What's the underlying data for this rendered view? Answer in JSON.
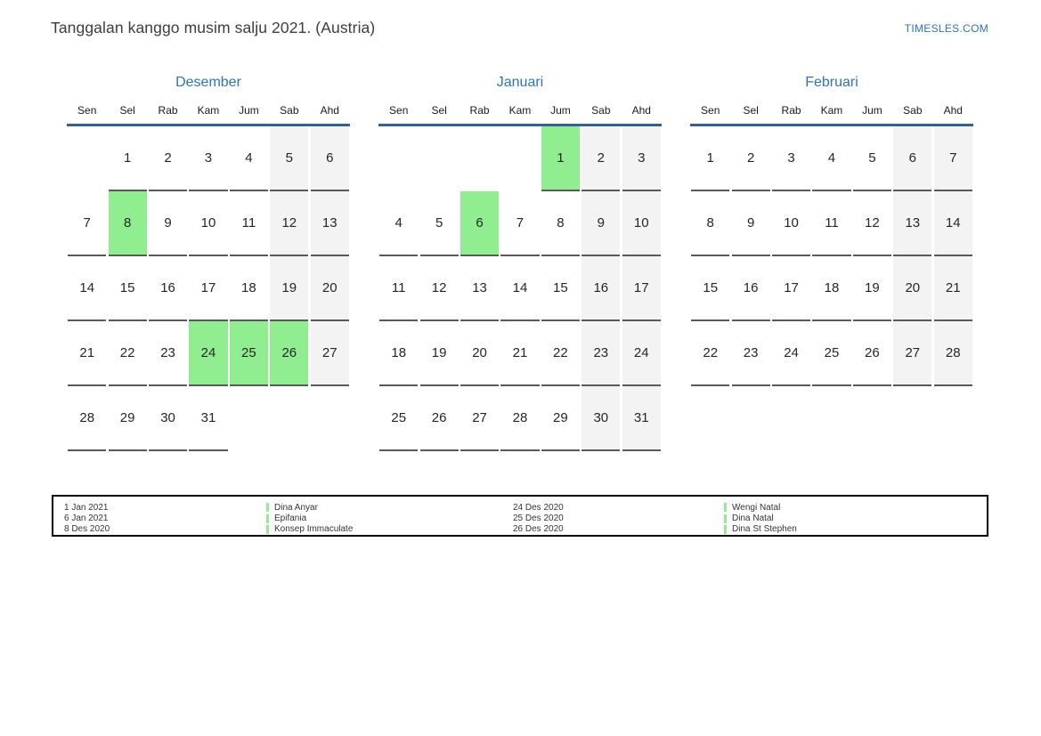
{
  "header": {
    "title": "Tanggalan kanggo musim salju 2021. (Austria)",
    "site_link": "TIMESLES.COM"
  },
  "colors": {
    "accent_blue": "#2e75b6",
    "header_line_blue": "#36618e",
    "holiday_green": "#90ee90",
    "weekend_gray": "#f3f3f3",
    "cell_underline": "#595959",
    "legend_border": "#000000"
  },
  "calendar": {
    "weekday_labels": [
      "Sen",
      "Sel",
      "Rab",
      "Kam",
      "Jum",
      "Sab",
      "Ahd"
    ],
    "months": [
      {
        "name": "Desember",
        "weeks": [
          [
            null,
            {
              "day": 1,
              "type": "normal"
            },
            {
              "day": 2,
              "type": "normal"
            },
            {
              "day": 3,
              "type": "normal"
            },
            {
              "day": 4,
              "type": "normal"
            },
            {
              "day": 5,
              "type": "weekend"
            },
            {
              "day": 6,
              "type": "weekend"
            }
          ],
          [
            {
              "day": 7,
              "type": "normal"
            },
            {
              "day": 8,
              "type": "holiday"
            },
            {
              "day": 9,
              "type": "normal"
            },
            {
              "day": 10,
              "type": "normal"
            },
            {
              "day": 11,
              "type": "normal"
            },
            {
              "day": 12,
              "type": "weekend"
            },
            {
              "day": 13,
              "type": "weekend"
            }
          ],
          [
            {
              "day": 14,
              "type": "normal"
            },
            {
              "day": 15,
              "type": "normal"
            },
            {
              "day": 16,
              "type": "normal"
            },
            {
              "day": 17,
              "type": "normal"
            },
            {
              "day": 18,
              "type": "normal"
            },
            {
              "day": 19,
              "type": "weekend"
            },
            {
              "day": 20,
              "type": "weekend"
            }
          ],
          [
            {
              "day": 21,
              "type": "normal"
            },
            {
              "day": 22,
              "type": "normal"
            },
            {
              "day": 23,
              "type": "normal"
            },
            {
              "day": 24,
              "type": "holiday"
            },
            {
              "day": 25,
              "type": "holiday"
            },
            {
              "day": 26,
              "type": "holiday"
            },
            {
              "day": 27,
              "type": "weekend"
            }
          ],
          [
            {
              "day": 28,
              "type": "normal"
            },
            {
              "day": 29,
              "type": "normal"
            },
            {
              "day": 30,
              "type": "normal"
            },
            {
              "day": 31,
              "type": "normal"
            },
            null,
            null,
            null
          ]
        ]
      },
      {
        "name": "Januari",
        "weeks": [
          [
            null,
            null,
            null,
            null,
            {
              "day": 1,
              "type": "holiday"
            },
            {
              "day": 2,
              "type": "weekend"
            },
            {
              "day": 3,
              "type": "weekend"
            }
          ],
          [
            {
              "day": 4,
              "type": "normal"
            },
            {
              "day": 5,
              "type": "normal"
            },
            {
              "day": 6,
              "type": "holiday"
            },
            {
              "day": 7,
              "type": "normal"
            },
            {
              "day": 8,
              "type": "normal"
            },
            {
              "day": 9,
              "type": "weekend"
            },
            {
              "day": 10,
              "type": "weekend"
            }
          ],
          [
            {
              "day": 11,
              "type": "normal"
            },
            {
              "day": 12,
              "type": "normal"
            },
            {
              "day": 13,
              "type": "normal"
            },
            {
              "day": 14,
              "type": "normal"
            },
            {
              "day": 15,
              "type": "normal"
            },
            {
              "day": 16,
              "type": "weekend"
            },
            {
              "day": 17,
              "type": "weekend"
            }
          ],
          [
            {
              "day": 18,
              "type": "normal"
            },
            {
              "day": 19,
              "type": "normal"
            },
            {
              "day": 20,
              "type": "normal"
            },
            {
              "day": 21,
              "type": "normal"
            },
            {
              "day": 22,
              "type": "normal"
            },
            {
              "day": 23,
              "type": "weekend"
            },
            {
              "day": 24,
              "type": "weekend"
            }
          ],
          [
            {
              "day": 25,
              "type": "normal"
            },
            {
              "day": 26,
              "type": "normal"
            },
            {
              "day": 27,
              "type": "normal"
            },
            {
              "day": 28,
              "type": "normal"
            },
            {
              "day": 29,
              "type": "normal"
            },
            {
              "day": 30,
              "type": "weekend"
            },
            {
              "day": 31,
              "type": "weekend"
            }
          ]
        ]
      },
      {
        "name": "Februari",
        "weeks": [
          [
            {
              "day": 1,
              "type": "normal"
            },
            {
              "day": 2,
              "type": "normal"
            },
            {
              "day": 3,
              "type": "normal"
            },
            {
              "day": 4,
              "type": "normal"
            },
            {
              "day": 5,
              "type": "normal"
            },
            {
              "day": 6,
              "type": "weekend"
            },
            {
              "day": 7,
              "type": "weekend"
            }
          ],
          [
            {
              "day": 8,
              "type": "normal"
            },
            {
              "day": 9,
              "type": "normal"
            },
            {
              "day": 10,
              "type": "normal"
            },
            {
              "day": 11,
              "type": "normal"
            },
            {
              "day": 12,
              "type": "normal"
            },
            {
              "day": 13,
              "type": "weekend"
            },
            {
              "day": 14,
              "type": "weekend"
            }
          ],
          [
            {
              "day": 15,
              "type": "normal"
            },
            {
              "day": 16,
              "type": "normal"
            },
            {
              "day": 17,
              "type": "normal"
            },
            {
              "day": 18,
              "type": "normal"
            },
            {
              "day": 19,
              "type": "normal"
            },
            {
              "day": 20,
              "type": "weekend"
            },
            {
              "day": 21,
              "type": "weekend"
            }
          ],
          [
            {
              "day": 22,
              "type": "normal"
            },
            {
              "day": 23,
              "type": "normal"
            },
            {
              "day": 24,
              "type": "normal"
            },
            {
              "day": 25,
              "type": "normal"
            },
            {
              "day": 26,
              "type": "normal"
            },
            {
              "day": 27,
              "type": "weekend"
            },
            {
              "day": 28,
              "type": "weekend"
            }
          ]
        ]
      }
    ]
  },
  "legend": {
    "groups": [
      {
        "entries": [
          {
            "date": "1 Jan 2021",
            "name": "Dina Anyar"
          },
          {
            "date": "6 Jan 2021",
            "name": "Epifania"
          },
          {
            "date": "8 Des 2020",
            "name": "Konsep Immaculate"
          }
        ]
      },
      {
        "entries": [
          {
            "date": "24 Des 2020",
            "name": "Wengi Natal"
          },
          {
            "date": "25 Des 2020",
            "name": "Dina Natal"
          },
          {
            "date": "26 Des 2020",
            "name": "Dina St Stephen"
          }
        ]
      }
    ]
  }
}
